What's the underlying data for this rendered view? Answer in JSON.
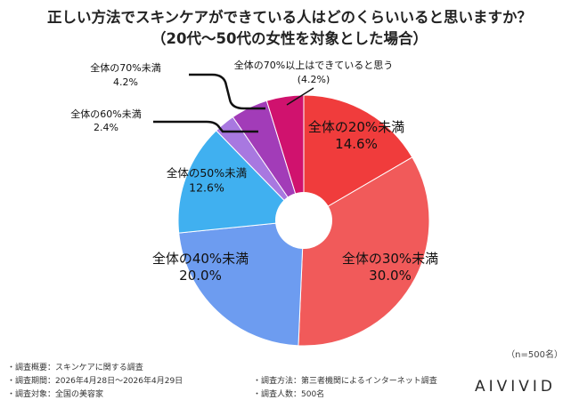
{
  "title_line1": "正しい方法でスキンケアができている人はどのくらいいると思いますか？",
  "title_line2": "（20代〜50代の女性を対象とした場合）",
  "sample_size": "（n=500名）",
  "brand": "AIVIVID",
  "footnotes": {
    "overview": "・調査概要：スキンケアに関する調査",
    "period": "・調査期間：2026年4月28日〜2026年4月29日",
    "target": "・調査対象：全国の美容家",
    "method": "・調査方法：第三者機関によるインターネット調査",
    "count": "・調査人数：500名"
  },
  "colors": {
    "slice_1": "#f03c3c",
    "slice_2": "#f15a5a",
    "slice_3": "#6d9cf0",
    "slice_4": "#40b0f0",
    "slice_5": "#a878e0",
    "slice_6": "#a23cb8",
    "slice_7": "#d0126e"
  },
  "chart_data": {
    "type": "pie",
    "donut": true,
    "title": "正しい方法でスキンケアができている人はどのくらいいると思いますか？（20代〜50代の女性を対象とした場合）",
    "slices": [
      {
        "label": "全体の20%未満",
        "value": 14.6,
        "value_label": "14.6%"
      },
      {
        "label": "全体の30%未満",
        "value": 30.0,
        "value_label": "30.0%"
      },
      {
        "label": "全体の40%未満",
        "value": 20.0,
        "value_label": "20.0%"
      },
      {
        "label": "全体の50%未満",
        "value": 12.6,
        "value_label": "12.6%"
      },
      {
        "label": "全体の60%未満",
        "value": 2.4,
        "value_label": "2.4%"
      },
      {
        "label": "全体の70%未満",
        "value": 4.2,
        "value_label": "4.2%"
      },
      {
        "label": "全体の70%以上はできていると思う",
        "value": 4.2,
        "value_label": "(4.2%)"
      }
    ]
  }
}
